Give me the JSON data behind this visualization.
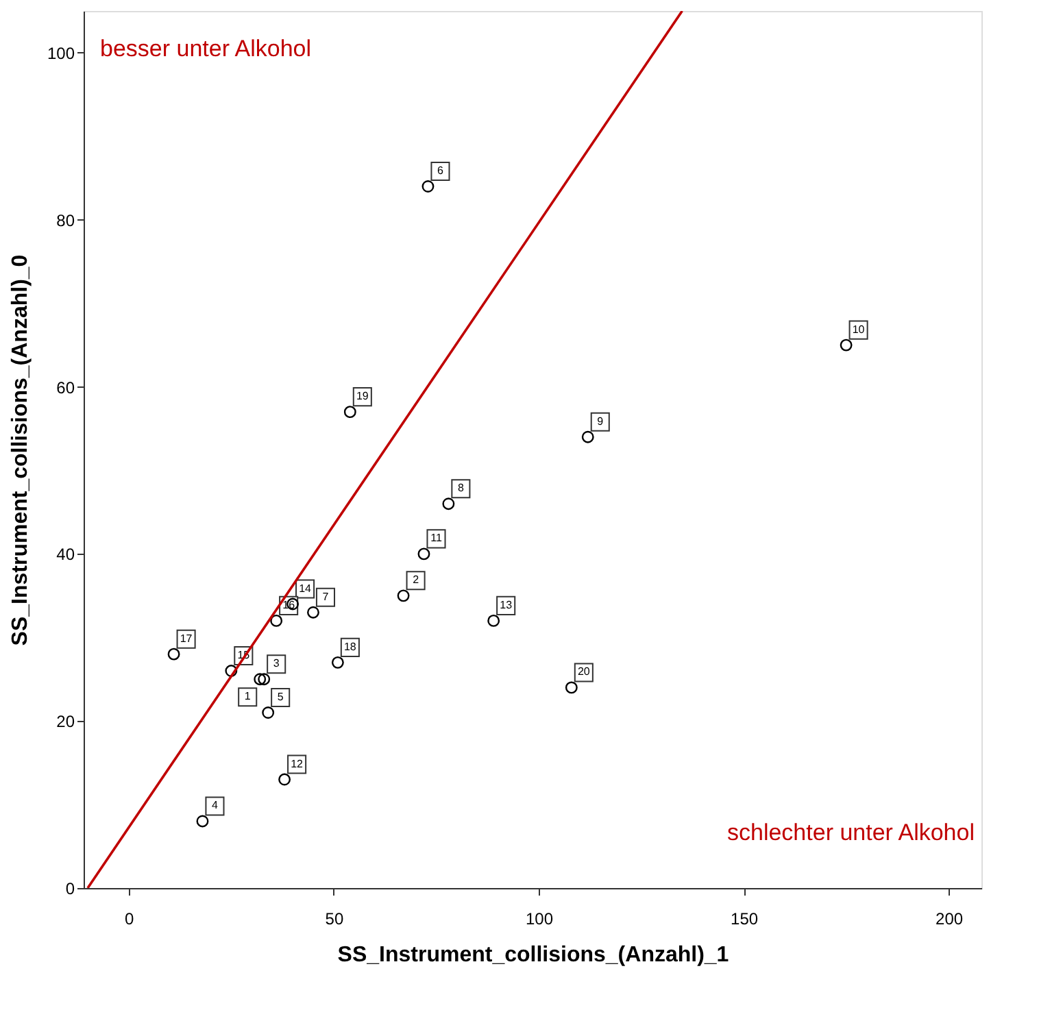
{
  "chart_data": {
    "type": "scatter",
    "xlabel": "SS_Instrument_collisions_(Anzahl)_1",
    "ylabel": "SS_Instrument_collisions_(Anzahl)_0",
    "xlim": [
      -11,
      208
    ],
    "ylim": [
      0,
      105
    ],
    "xticks": [
      0,
      50,
      100,
      150,
      200
    ],
    "yticks": [
      0,
      20,
      40,
      60,
      80,
      100
    ],
    "grid": false,
    "series": [
      {
        "marker": "circle",
        "color": "#000000",
        "x": [
          32,
          67,
          33,
          18,
          34,
          73,
          45,
          78,
          112,
          175,
          72,
          38,
          89,
          40,
          25,
          36,
          11,
          51,
          54,
          108
        ],
        "values": [
          25,
          35,
          25,
          8,
          21,
          84,
          33,
          46,
          54,
          65,
          40,
          13,
          32,
          34,
          26,
          32,
          28,
          27,
          57,
          24
        ]
      },
      {
        "type": "line",
        "marker": "none",
        "color": "#c00000",
        "line_style": "solid",
        "x": [
          -10,
          135
        ],
        "values": [
          0,
          105
        ]
      }
    ],
    "annotations": [
      "besser unter Alkohol",
      "schlechter unter Alkohol",
      {
        "text": "1",
        "x": 32,
        "y": 25
      },
      {
        "text": "2",
        "x": 67,
        "y": 35
      },
      {
        "text": "3",
        "x": 33,
        "y": 25
      },
      {
        "text": "4",
        "x": 18,
        "y": 8
      },
      {
        "text": "5",
        "x": 34,
        "y": 21
      },
      {
        "text": "6",
        "x": 73,
        "y": 84
      },
      {
        "text": "7",
        "x": 45,
        "y": 33
      },
      {
        "text": "8",
        "x": 78,
        "y": 46
      },
      {
        "text": "9",
        "x": 112,
        "y": 54
      },
      {
        "text": "10",
        "x": 175,
        "y": 65
      },
      {
        "text": "11",
        "x": 72,
        "y": 40
      },
      {
        "text": "12",
        "x": 38,
        "y": 13
      },
      {
        "text": "13",
        "x": 89,
        "y": 32
      },
      {
        "text": "14",
        "x": 40,
        "y": 34
      },
      {
        "text": "15",
        "x": 25,
        "y": 26
      },
      {
        "text": "16",
        "x": 36,
        "y": 32
      },
      {
        "text": "17",
        "x": 11,
        "y": 28
      },
      {
        "text": "18",
        "x": 51,
        "y": 27
      },
      {
        "text": "19",
        "x": 54,
        "y": 57
      },
      {
        "text": "20",
        "x": 108,
        "y": 24
      }
    ]
  }
}
